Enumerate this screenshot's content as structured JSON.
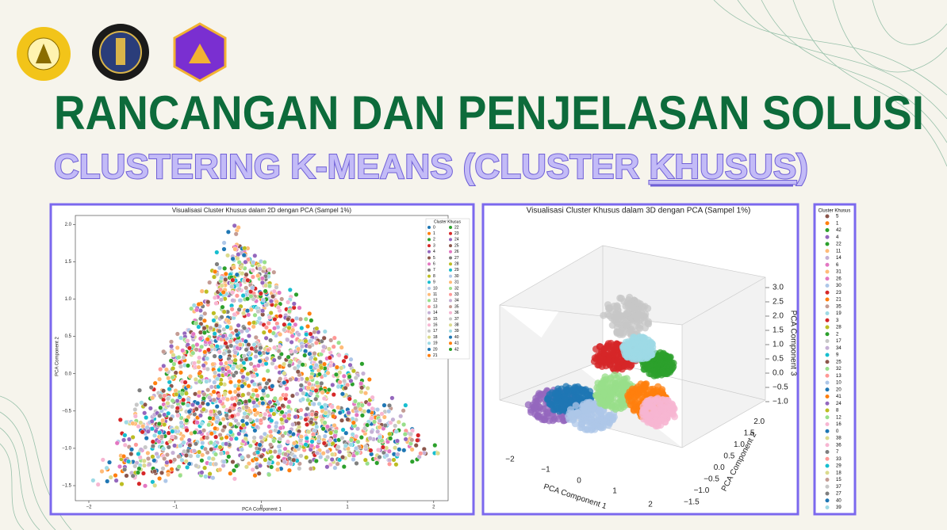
{
  "header": {
    "title": "RANCANGAN DAN PENJELASAN SOLUSI",
    "subtitle_start": "CLUSTERING K-MEANS (CLUSTER ",
    "subtitle_underlined": "KHUSUS",
    "subtitle_end": ")"
  },
  "chart_2d": {
    "title": "Visualisasi Cluster Khusus dalam 2D dengan PCA (Sampel 1%)",
    "x_label": "PCA Component 1",
    "y_label": "PCA Component 2",
    "x_ticks": [
      "−2",
      "−1",
      "0",
      "1",
      "2"
    ],
    "y_ticks": [
      "−1.5",
      "−1.0",
      "−0.5",
      "0.0",
      "0.5",
      "1.0",
      "1.5",
      "2.0"
    ],
    "legend_title": "Cluster Khusus",
    "legend": [
      "0",
      "1",
      "2",
      "3",
      "4",
      "5",
      "6",
      "7",
      "8",
      "9",
      "10",
      "11",
      "12",
      "13",
      "14",
      "15",
      "16",
      "17",
      "18",
      "19",
      "20",
      "21",
      "22",
      "23",
      "24",
      "25",
      "26",
      "27",
      "28",
      "29",
      "30",
      "31",
      "32",
      "33",
      "34",
      "35",
      "36",
      "37",
      "38",
      "39",
      "40",
      "41",
      "42"
    ]
  },
  "chart_3d": {
    "title": "Visualisasi Cluster Khusus dalam 3D dengan PCA (Sampel 1%)",
    "x_label": "PCA Component 1",
    "y_label": "PCA Component 2",
    "z_label": "PCA Component 3",
    "x_ticks": [
      "−2",
      "−1",
      "0",
      "1",
      "2"
    ],
    "y_ticks": [
      "−1.5",
      "−1.0",
      "−0.5",
      "0.0",
      "0.5",
      "1.0",
      "1.5",
      "2.0"
    ],
    "z_ticks": [
      "3.0",
      "2.5",
      "2.0",
      "1.5",
      "1.0",
      "0.5",
      "0.0",
      "−0.5",
      "−1.0"
    ]
  },
  "legend_panel": {
    "title": "Cluster Khusus",
    "entries": [
      "5",
      "1",
      "42",
      "4",
      "22",
      "11",
      "14",
      "6",
      "31",
      "26",
      "30",
      "23",
      "21",
      "35",
      "19",
      "3",
      "28",
      "2",
      "17",
      "34",
      "9",
      "25",
      "32",
      "13",
      "10",
      "20",
      "41",
      "24",
      "8",
      "12",
      "16",
      "0",
      "38",
      "36",
      "7",
      "33",
      "29",
      "18",
      "15",
      "37",
      "27",
      "40",
      "39"
    ]
  }
}
